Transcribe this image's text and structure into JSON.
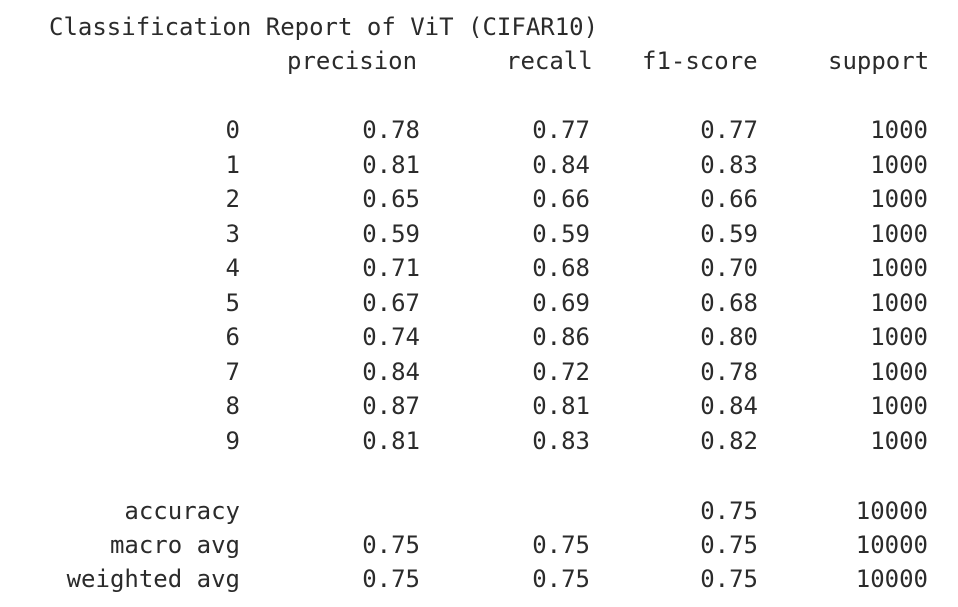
{
  "title": "Classification Report of ViT (CIFAR10)",
  "headers": {
    "precision": "precision",
    "recall": "recall",
    "f1": "f1-score",
    "support": "support"
  },
  "rows": [
    {
      "label": "0",
      "precision": "0.78",
      "recall": "0.77",
      "f1": "0.77",
      "support": "1000"
    },
    {
      "label": "1",
      "precision": "0.81",
      "recall": "0.84",
      "f1": "0.83",
      "support": "1000"
    },
    {
      "label": "2",
      "precision": "0.65",
      "recall": "0.66",
      "f1": "0.66",
      "support": "1000"
    },
    {
      "label": "3",
      "precision": "0.59",
      "recall": "0.59",
      "f1": "0.59",
      "support": "1000"
    },
    {
      "label": "4",
      "precision": "0.71",
      "recall": "0.68",
      "f1": "0.70",
      "support": "1000"
    },
    {
      "label": "5",
      "precision": "0.67",
      "recall": "0.69",
      "f1": "0.68",
      "support": "1000"
    },
    {
      "label": "6",
      "precision": "0.74",
      "recall": "0.86",
      "f1": "0.80",
      "support": "1000"
    },
    {
      "label": "7",
      "precision": "0.84",
      "recall": "0.72",
      "f1": "0.78",
      "support": "1000"
    },
    {
      "label": "8",
      "precision": "0.87",
      "recall": "0.81",
      "f1": "0.84",
      "support": "1000"
    },
    {
      "label": "9",
      "precision": "0.81",
      "recall": "0.83",
      "f1": "0.82",
      "support": "1000"
    }
  ],
  "summary": [
    {
      "label": "accuracy",
      "precision": "",
      "recall": "",
      "f1": "0.75",
      "support": "10000"
    },
    {
      "label": "macro avg",
      "precision": "0.75",
      "recall": "0.75",
      "f1": "0.75",
      "support": "10000"
    },
    {
      "label": "weighted avg",
      "precision": "0.75",
      "recall": "0.75",
      "f1": "0.75",
      "support": "10000"
    }
  ]
}
